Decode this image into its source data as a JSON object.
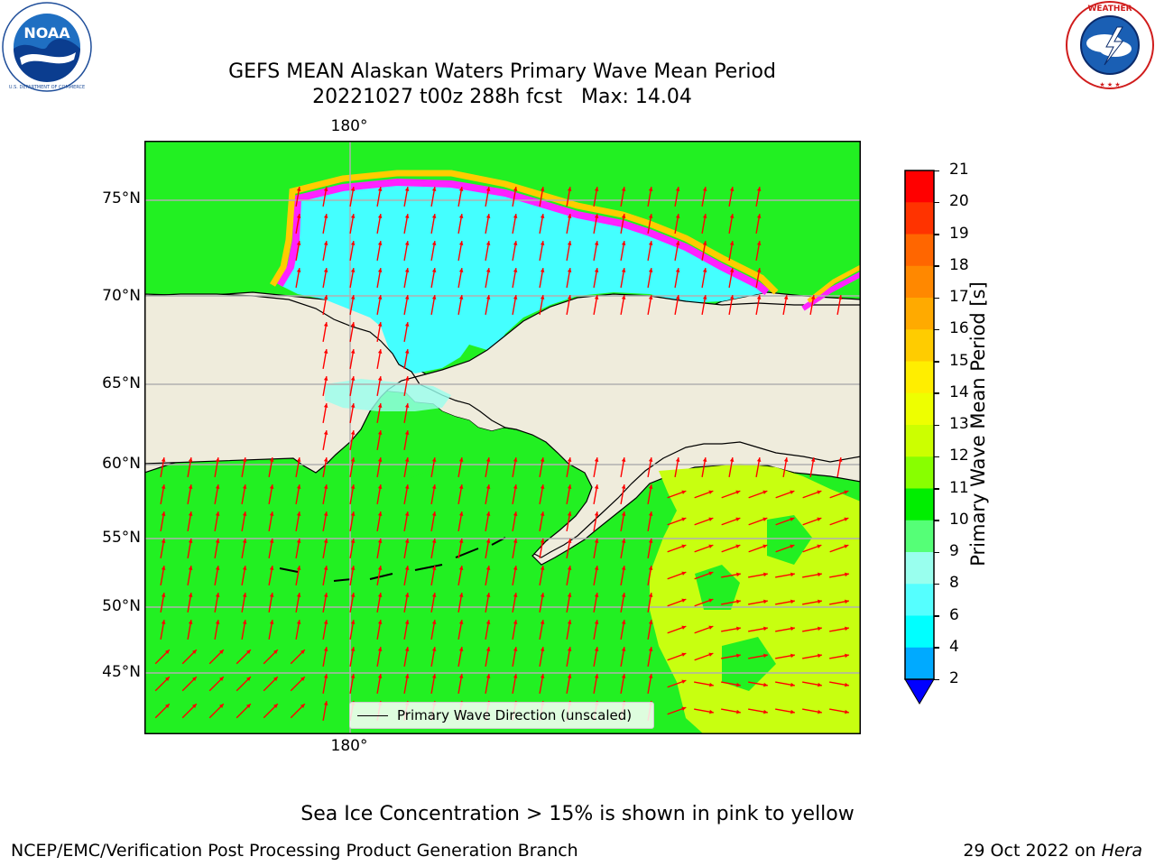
{
  "title": {
    "line1": "GEFS MEAN Alaskan Waters Primary Wave Mean Period",
    "line2": "20221027 t00z 288h fcst   Max: 14.04"
  },
  "logos": {
    "noaa": {
      "text": "NOAA",
      "ring_text": "NATIONAL OCEANIC AND ATMOSPHERIC ADMINISTRATION · U.S. DEPARTMENT OF COMMERCE"
    },
    "nws": {
      "ring_text": "NATIONAL WEATHER SERVICE"
    }
  },
  "map": {
    "lon_labels": {
      "top": "180°",
      "bottom": "180°"
    },
    "lat_labels": [
      "75°N",
      "70°N",
      "65°N",
      "60°N",
      "55°N",
      "50°N",
      "45°N"
    ],
    "land_color": "#efecdc",
    "grid_color": "#b0b0b0",
    "arrow_color": "#ff0000",
    "legend_label": "Primary Wave Direction (unscaled)"
  },
  "colorbar": {
    "label": "Primary Wave Mean Period [s]",
    "ticks": [
      "21",
      "20",
      "19",
      "18",
      "17",
      "16",
      "15",
      "14",
      "13",
      "12",
      "11",
      "10",
      "9",
      "8",
      "6",
      "4",
      "2"
    ],
    "colors": [
      "#ff0000",
      "#ff3300",
      "#ff6600",
      "#ff8800",
      "#ffaa00",
      "#ffcc00",
      "#ffee00",
      "#eeff00",
      "#ccff00",
      "#88ff00",
      "#00ee00",
      "#55ff77",
      "#99ffee",
      "#55ffff",
      "#00ffff",
      "#00aaff",
      "#0000ff"
    ]
  },
  "annotation": "Sea Ice Concentration > 15% is shown in pink to yellow",
  "footer": {
    "left": "NCEP/EMC/Verification Post Processing Product Generation Branch",
    "date": "29 Oct 2022 on ",
    "host": "Hera"
  }
}
